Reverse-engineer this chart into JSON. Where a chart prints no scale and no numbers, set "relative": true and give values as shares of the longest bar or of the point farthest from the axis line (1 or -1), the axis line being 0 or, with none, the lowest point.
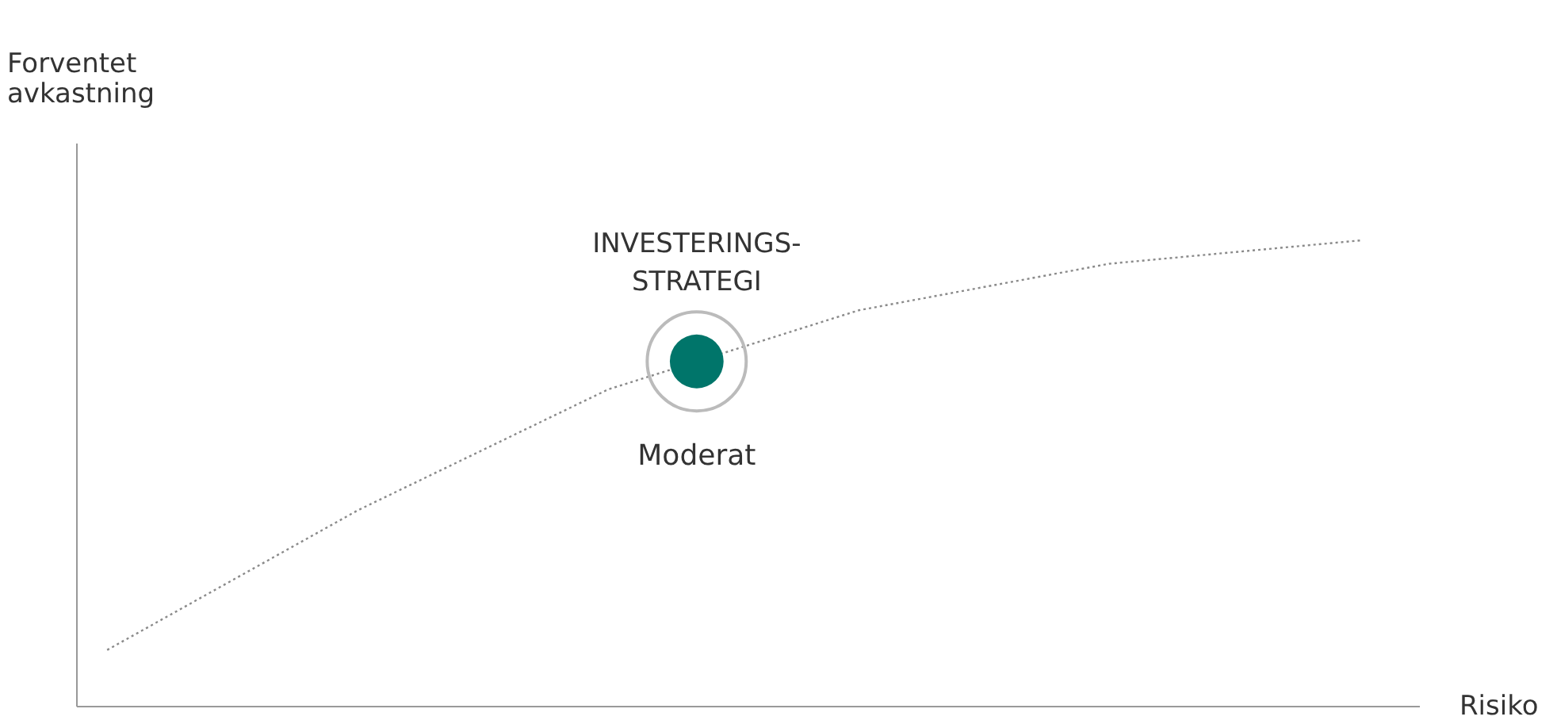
{
  "chart_data": {
    "type": "line",
    "relative": true,
    "xlabel": "Risiko",
    "ylabel": "Forventet avkastning",
    "categories": [
      null,
      null,
      null,
      null,
      null,
      null
    ],
    "series": [
      {
        "color": "#8a8a8a",
        "line_style": "dotted",
        "values": [
          0.12,
          0.42,
          0.68,
          0.85,
          0.95,
          1.0
        ]
      }
    ],
    "annotations": [
      "INVESTERINGS-STRATEGI",
      {
        "text": "Moderat",
        "y": 0.74
      }
    ],
    "grid": false,
    "marker": "none"
  }
}
